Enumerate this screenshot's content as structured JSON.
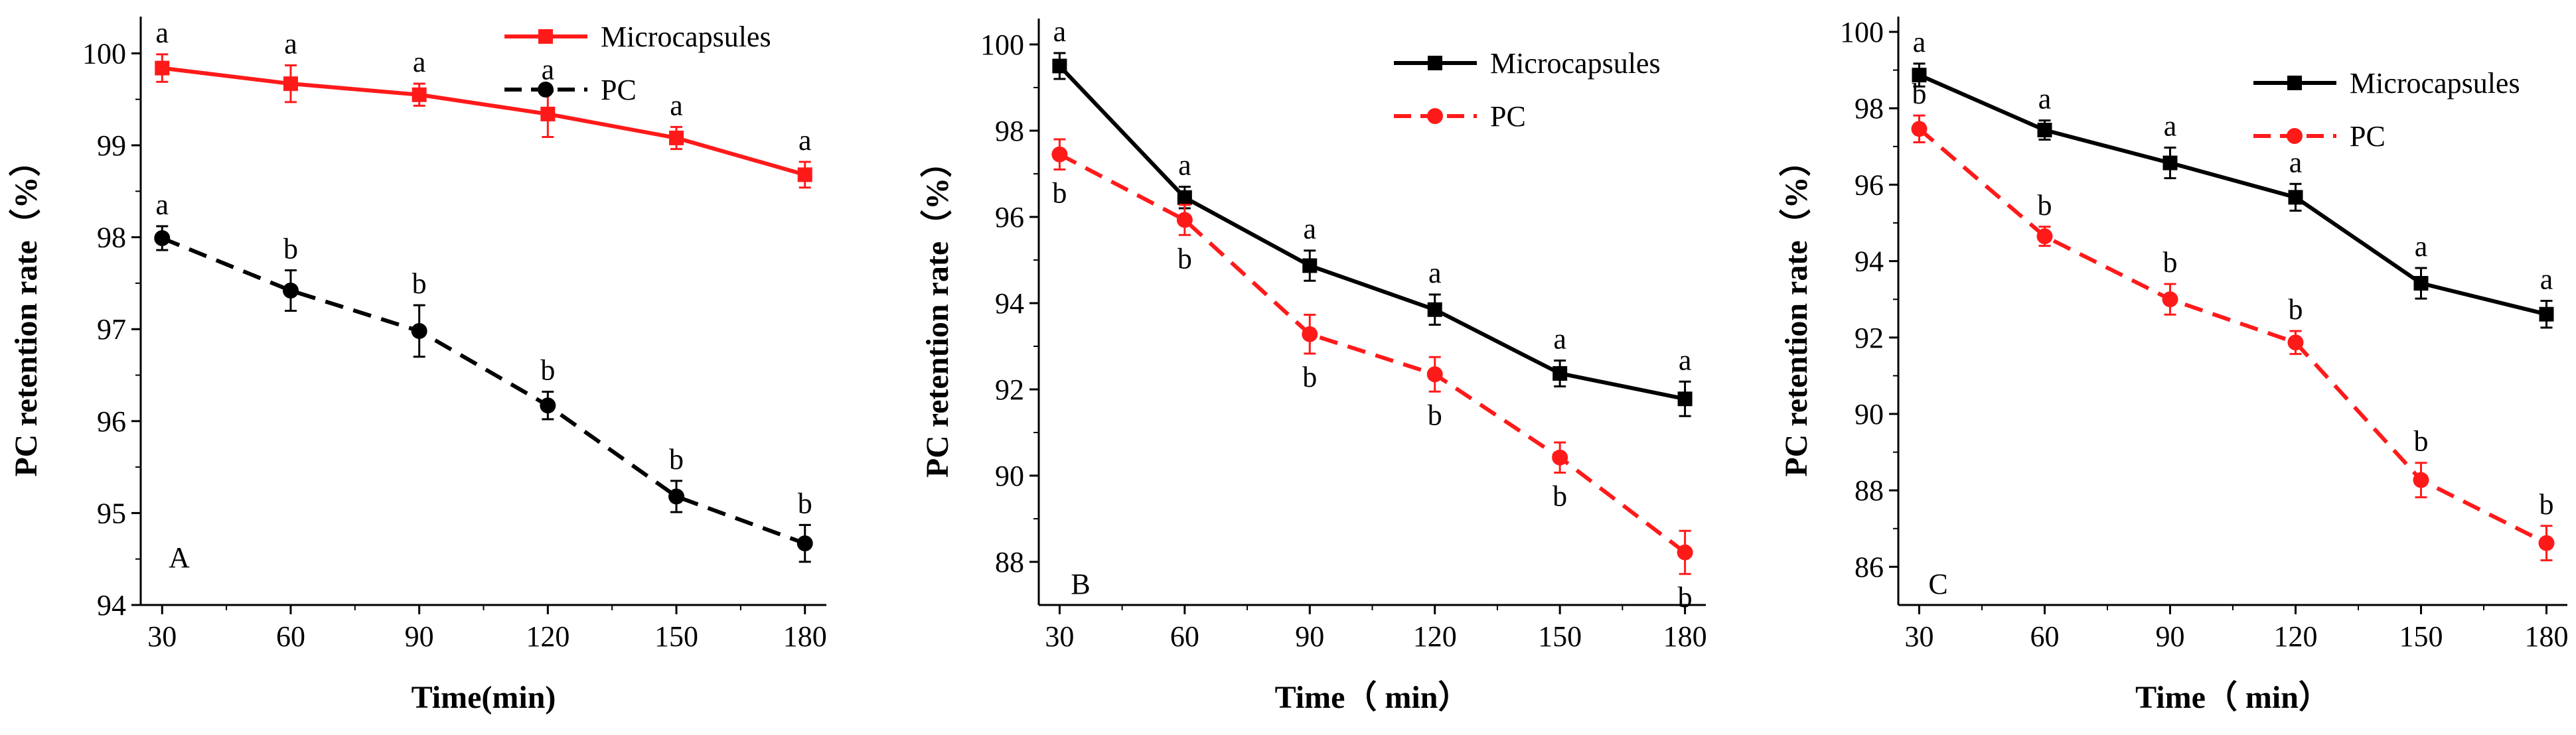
{
  "chart_data": [
    {
      "type": "line",
      "panel_label": "A",
      "xlabel": "Time(min)",
      "ylabel": "PC retention rate（%）",
      "x": [
        30,
        60,
        90,
        120,
        150,
        180
      ],
      "xlim": [
        25,
        185
      ],
      "ylim": [
        94,
        100.4
      ],
      "yticks": [
        94,
        95,
        96,
        97,
        98,
        99,
        100
      ],
      "legend_position": "top-right",
      "series": [
        {
          "name": "Microcapsules",
          "color": "#ff1a1a",
          "dash": "solid",
          "marker": "square",
          "values": [
            99.84,
            99.67,
            99.55,
            99.34,
            99.08,
            98.68
          ],
          "errors": [
            0.15,
            0.2,
            0.12,
            0.25,
            0.12,
            0.14
          ],
          "labels": [
            "a",
            "a",
            "a",
            "a",
            "a",
            "a"
          ],
          "label_side": "above"
        },
        {
          "name": "PC",
          "color": "#000000",
          "dash": "dashed",
          "marker": "circle",
          "values": [
            97.99,
            97.42,
            96.98,
            96.17,
            95.18,
            94.67
          ],
          "errors": [
            0.13,
            0.22,
            0.28,
            0.15,
            0.17,
            0.2
          ],
          "labels": [
            "a",
            "b",
            "b",
            "b",
            "b",
            "b"
          ],
          "label_side": "above"
        }
      ]
    },
    {
      "type": "line",
      "panel_label": "B",
      "xlabel": "Time（ min）",
      "ylabel": "PC retention rate（%）",
      "x": [
        30,
        60,
        90,
        120,
        150,
        180
      ],
      "xlim": [
        25,
        185
      ],
      "ylim": [
        87,
        100.6
      ],
      "yticks": [
        88,
        90,
        92,
        94,
        96,
        98,
        100
      ],
      "legend_position": "top-right",
      "series": [
        {
          "name": "Microcapsules",
          "color": "#000000",
          "dash": "solid",
          "marker": "square",
          "values": [
            99.5,
            96.45,
            94.87,
            93.85,
            92.37,
            91.78
          ],
          "errors": [
            0.3,
            0.25,
            0.35,
            0.35,
            0.3,
            0.4
          ],
          "labels": [
            "a",
            "a",
            "a",
            "a",
            "a",
            "a"
          ],
          "label_side": "above"
        },
        {
          "name": "PC",
          "color": "#ff1a1a",
          "dash": "dashed",
          "marker": "circle",
          "values": [
            97.45,
            95.93,
            93.28,
            92.35,
            90.42,
            88.22
          ],
          "errors": [
            0.35,
            0.35,
            0.45,
            0.4,
            0.35,
            0.5
          ],
          "labels": [
            "b",
            "b",
            "b",
            "b",
            "b",
            "b"
          ],
          "label_side": "below"
        }
      ]
    },
    {
      "type": "line",
      "panel_label": "C",
      "xlabel": "Time（ min）",
      "ylabel": "PC retention rate（%）",
      "x": [
        30,
        60,
        90,
        120,
        150,
        180
      ],
      "xlim": [
        25,
        185
      ],
      "ylim": [
        85,
        100.4
      ],
      "yticks": [
        86,
        88,
        90,
        92,
        94,
        96,
        98,
        100
      ],
      "legend_position": "top-right",
      "series": [
        {
          "name": "Microcapsules",
          "color": "#000000",
          "dash": "solid",
          "marker": "square",
          "values": [
            98.87,
            97.43,
            96.57,
            95.67,
            93.42,
            92.61
          ],
          "errors": [
            0.3,
            0.25,
            0.4,
            0.35,
            0.4,
            0.35
          ],
          "labels": [
            "a",
            "a",
            "a",
            "a",
            "a",
            "a"
          ],
          "label_side": "above"
        },
        {
          "name": "PC",
          "color": "#ff1a1a",
          "dash": "dashed",
          "marker": "circle",
          "values": [
            97.46,
            94.65,
            93.0,
            91.87,
            88.27,
            86.62
          ],
          "errors": [
            0.35,
            0.25,
            0.4,
            0.3,
            0.45,
            0.45
          ],
          "labels": [
            "b",
            "b",
            "b",
            "b",
            "b",
            "b"
          ],
          "label_side": "above"
        }
      ]
    }
  ]
}
